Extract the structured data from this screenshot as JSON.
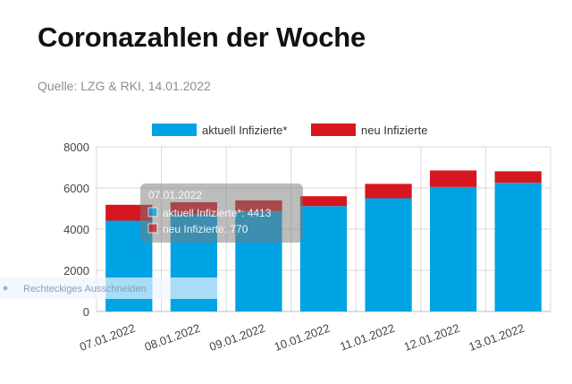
{
  "page": {
    "title": "Coronazahlen der Woche",
    "source": "Quelle: LZG & RKI, 14.01.2022"
  },
  "tooltip": {
    "date": "07.01.2022",
    "line1": "aktuell Infizierte*: 4413",
    "line2": "neu Infizierte: 770"
  },
  "overlay": {
    "snip_label": "Rechteckiges Ausschneiden"
  },
  "colors": {
    "aktuell": "#00a3e4",
    "neu": "#d7171f",
    "grid": "#d9d9d9"
  },
  "chart_data": {
    "type": "bar",
    "stacked": true,
    "categories": [
      "07.01.2022",
      "08.01.2022",
      "09.01.2022",
      "10.01.2022",
      "11.01.2022",
      "12.01.2022",
      "13.01.2022"
    ],
    "series": [
      {
        "name": "aktuell Infizierte*",
        "color": "#00a3e4",
        "values": [
          4413,
          4720,
          4880,
          5120,
          5500,
          6050,
          6250
        ]
      },
      {
        "name": "neu Infizierte",
        "color": "#d7171f",
        "values": [
          770,
          590,
          520,
          480,
          700,
          800,
          560
        ]
      }
    ],
    "ylim": [
      0,
      8000
    ],
    "yticks": [
      0,
      2000,
      4000,
      6000,
      8000
    ],
    "grid": true,
    "legend": "top-center",
    "xlabel": "",
    "ylabel": ""
  }
}
